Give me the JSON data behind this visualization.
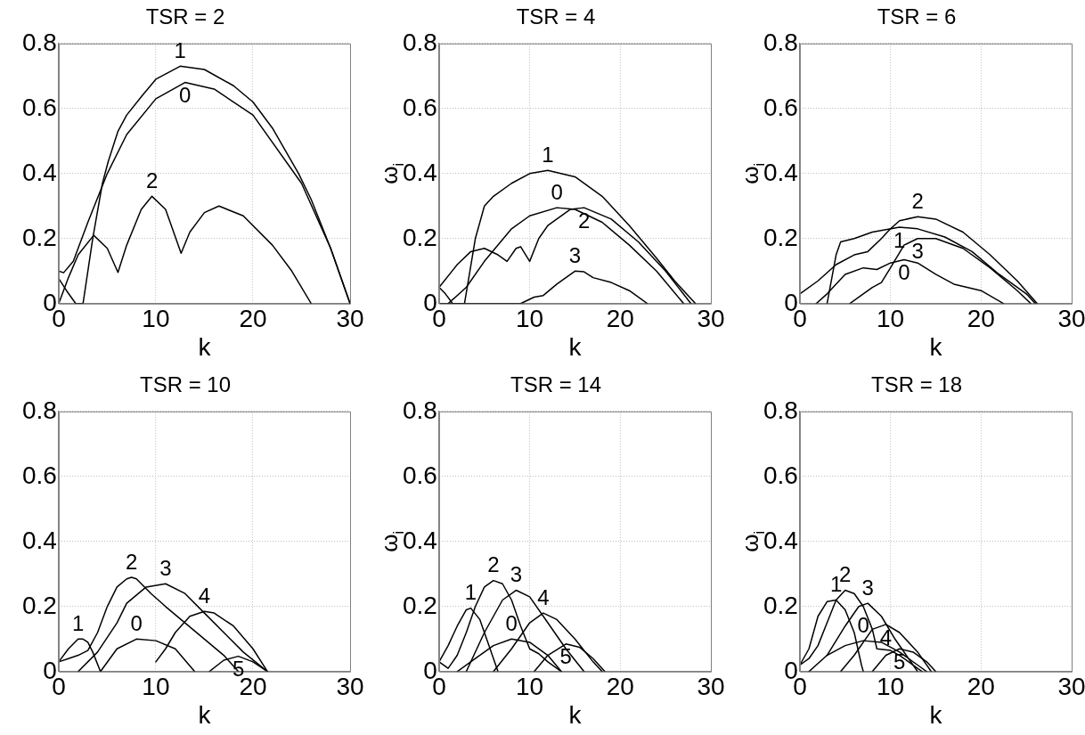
{
  "chart_data": [
    {
      "type": "line",
      "title": "TSR = 2",
      "xlabel": "k",
      "xlim": [
        0,
        30
      ],
      "xticks": [
        0,
        10,
        20,
        30
      ],
      "ylim": [
        0,
        0.8
      ],
      "yticks": [
        0,
        0.2,
        0.4,
        0.6,
        0.8
      ],
      "grid": true,
      "series": [
        {
          "name": "1",
          "color": "#000000",
          "x": [
            0,
            0.8,
            1.75,
            2.5,
            3.5,
            4.5,
            5.1,
            6.1,
            7,
            8.6,
            10,
            12.5,
            15,
            18,
            20,
            22,
            24.7,
            26,
            28,
            30
          ],
          "values": [
            0.077,
            0.04,
            0,
            0,
            0.2,
            0.37,
            0.437,
            0.53,
            0.58,
            0.64,
            0.69,
            0.73,
            0.72,
            0.67,
            0.62,
            0.54,
            0.4,
            0.32,
            0.17,
            0
          ]
        },
        {
          "name": "0",
          "color": "#000000",
          "x": [
            0,
            0.5,
            1.5,
            3,
            5,
            7,
            10,
            13,
            16,
            20,
            25,
            28,
            30
          ],
          "values": [
            0.1,
            0.095,
            0.13,
            0.25,
            0.4,
            0.52,
            0.63,
            0.68,
            0.66,
            0.58,
            0.37,
            0.17,
            0
          ]
        },
        {
          "name": "2",
          "color": "#000000",
          "x": [
            0,
            1,
            2,
            3.6,
            5,
            6.1,
            7,
            8.5,
            9.6,
            11,
            12.6,
            13.5,
            15,
            16.5,
            19,
            22,
            24,
            26
          ],
          "values": [
            0,
            0.08,
            0.15,
            0.21,
            0.17,
            0.096,
            0.18,
            0.29,
            0.33,
            0.29,
            0.155,
            0.22,
            0.28,
            0.3,
            0.27,
            0.18,
            0.1,
            0
          ]
        }
      ],
      "legend": false
    },
    {
      "type": "line",
      "title": "TSR = 4",
      "xlabel": "k",
      "ylabel": "ω$_{i}$",
      "xlim": [
        0,
        30
      ],
      "xticks": [
        0,
        10,
        20,
        30
      ],
      "ylim": [
        0,
        0.8
      ],
      "yticks": [
        0,
        0.2,
        0.4,
        0.6,
        0.8
      ],
      "grid": true,
      "series": [
        {
          "name": "1",
          "color": "#000000",
          "x": [
            0,
            0.7,
            1.5,
            2.8,
            4,
            5,
            6,
            8,
            10,
            12,
            15,
            18,
            21,
            24,
            26,
            28.3
          ],
          "values": [
            0.05,
            0.03,
            0,
            0,
            0.2,
            0.3,
            0.33,
            0.37,
            0.4,
            0.41,
            0.39,
            0.33,
            0.24,
            0.14,
            0.07,
            0
          ]
        },
        {
          "name": "0",
          "color": "#000000",
          "x": [
            1,
            3,
            5,
            8,
            10,
            13,
            15,
            18,
            21,
            24,
            27
          ],
          "values": [
            0,
            0.05,
            0.13,
            0.23,
            0.27,
            0.295,
            0.29,
            0.25,
            0.18,
            0.1,
            0
          ]
        },
        {
          "name": "2",
          "color": "#000000",
          "x": [
            0,
            2,
            3.5,
            5,
            6.5,
            7.5,
            8.5,
            9,
            10,
            11,
            12,
            14.5,
            16,
            19,
            22,
            25,
            27.8
          ],
          "values": [
            0.05,
            0.12,
            0.16,
            0.17,
            0.15,
            0.13,
            0.17,
            0.175,
            0.13,
            0.2,
            0.24,
            0.29,
            0.295,
            0.26,
            0.19,
            0.1,
            0
          ]
        },
        {
          "name": "3",
          "color": "#000000",
          "x": [
            0,
            9,
            10.5,
            11.5,
            13,
            15,
            16,
            17,
            19,
            21,
            23
          ],
          "values": [
            0,
            0,
            0.02,
            0.025,
            0.06,
            0.1,
            0.098,
            0.08,
            0.065,
            0.04,
            0
          ]
        }
      ],
      "legend": false
    },
    {
      "type": "line",
      "title": "TSR = 6",
      "xlabel": "k",
      "ylabel": "ω$_{i}$",
      "xlim": [
        0,
        30
      ],
      "xticks": [
        0,
        10,
        20,
        30
      ],
      "ylim": [
        0,
        0.8
      ],
      "yticks": [
        0,
        0.2,
        0.4,
        0.6,
        0.8
      ],
      "grid": true,
      "series": [
        {
          "name": "2",
          "color": "#000000",
          "x": [
            0,
            2,
            4,
            6,
            7.5,
            9,
            10,
            11,
            13,
            15,
            18,
            21,
            24,
            26.2
          ],
          "values": [
            0.03,
            0.07,
            0.12,
            0.15,
            0.16,
            0.2,
            0.23,
            0.255,
            0.267,
            0.26,
            0.22,
            0.15,
            0.07,
            0
          ]
        },
        {
          "name": "1",
          "color": "#000000",
          "x": [
            3,
            4,
            4.5,
            6,
            8,
            11,
            13,
            16,
            19,
            22,
            25,
            26
          ],
          "values": [
            0,
            0.15,
            0.19,
            0.2,
            0.22,
            0.235,
            0.23,
            0.205,
            0.16,
            0.09,
            0.03,
            0
          ]
        },
        {
          "name": "3",
          "color": "#000000",
          "x": [
            5.5,
            7,
            8,
            9,
            10,
            11.5,
            13,
            15,
            18,
            21,
            24,
            25.5
          ],
          "values": [
            0,
            0.03,
            0.05,
            0.065,
            0.11,
            0.18,
            0.2,
            0.2,
            0.17,
            0.11,
            0.04,
            0
          ]
        },
        {
          "name": "0",
          "color": "#000000",
          "x": [
            1.8,
            3,
            5,
            7,
            8.5,
            10,
            11.5,
            13,
            15,
            17,
            20,
            22.5
          ],
          "values": [
            0,
            0.03,
            0.09,
            0.11,
            0.105,
            0.125,
            0.135,
            0.125,
            0.09,
            0.06,
            0.04,
            0
          ]
        }
      ],
      "legend": false
    },
    {
      "type": "line",
      "title": "TSR = 10",
      "xlabel": "k",
      "xlim": [
        0,
        30
      ],
      "xticks": [
        0,
        10,
        20,
        30
      ],
      "ylim": [
        0,
        0.8
      ],
      "yticks": [
        0,
        0.2,
        0.4,
        0.6,
        0.8
      ],
      "grid": true,
      "series": [
        {
          "name": "2",
          "color": "#000000",
          "x": [
            0,
            1,
            2,
            3,
            4,
            5,
            6,
            7,
            7.5,
            8,
            9.5,
            11,
            13,
            15,
            17,
            18.5
          ],
          "values": [
            0.03,
            0.04,
            0.05,
            0.065,
            0.12,
            0.2,
            0.26,
            0.285,
            0.29,
            0.285,
            0.24,
            0.2,
            0.15,
            0.1,
            0.05,
            0
          ]
        },
        {
          "name": "1",
          "color": "#000000",
          "x": [
            0,
            1,
            2,
            2.5,
            3,
            3.5,
            4.3
          ],
          "values": [
            0.03,
            0.07,
            0.1,
            0.1,
            0.09,
            0.06,
            0
          ]
        },
        {
          "name": "3",
          "color": "#000000",
          "x": [
            2,
            4,
            6,
            7,
            9,
            11,
            13,
            15,
            17,
            19,
            21.5
          ],
          "values": [
            0,
            0.06,
            0.15,
            0.21,
            0.26,
            0.27,
            0.24,
            0.18,
            0.12,
            0.06,
            0
          ]
        },
        {
          "name": "4",
          "color": "#000000",
          "x": [
            10,
            11,
            12,
            13.5,
            15,
            16,
            18,
            20,
            21.5
          ],
          "values": [
            0.03,
            0.07,
            0.12,
            0.17,
            0.185,
            0.18,
            0.14,
            0.07,
            0
          ]
        },
        {
          "name": "0",
          "color": "#000000",
          "x": [
            4.3,
            6,
            8,
            10,
            12,
            14
          ],
          "values": [
            0,
            0.07,
            0.1,
            0.095,
            0.07,
            0
          ]
        },
        {
          "name": "5",
          "color": "#000000",
          "x": [
            15.5,
            17,
            18.5,
            20,
            21.5
          ],
          "values": [
            0,
            0.035,
            0.047,
            0.03,
            0
          ]
        }
      ],
      "legend": false
    },
    {
      "type": "line",
      "title": "TSR = 14",
      "xlabel": "k",
      "ylabel": "ω$_{i}$",
      "xlim": [
        0,
        30
      ],
      "xticks": [
        0,
        10,
        20,
        30
      ],
      "ylim": [
        0,
        0.8
      ],
      "yticks": [
        0,
        0.2,
        0.4,
        0.6,
        0.8
      ],
      "grid": true,
      "series": [
        {
          "name": "2",
          "color": "#000000",
          "x": [
            0,
            1,
            2,
            3,
            4,
            5,
            6,
            7,
            8,
            9,
            10,
            11,
            12,
            13.5
          ],
          "values": [
            0.03,
            0.01,
            0.05,
            0.12,
            0.2,
            0.26,
            0.28,
            0.27,
            0.22,
            0.14,
            0.07,
            0.055,
            0.03,
            0
          ]
        },
        {
          "name": "1",
          "color": "#000000",
          "x": [
            0,
            1,
            2,
            3,
            3.5,
            4.5,
            5.5,
            6.5
          ],
          "values": [
            0.03,
            0.08,
            0.14,
            0.19,
            0.195,
            0.16,
            0.08,
            0
          ]
        },
        {
          "name": "3",
          "color": "#000000",
          "x": [
            3,
            5,
            7,
            8.5,
            10,
            12,
            14,
            16
          ],
          "values": [
            0,
            0.12,
            0.22,
            0.25,
            0.23,
            0.15,
            0.07,
            0
          ]
        },
        {
          "name": "4",
          "color": "#000000",
          "x": [
            6,
            8,
            10,
            11.5,
            13,
            15,
            17,
            18
          ],
          "values": [
            0,
            0.07,
            0.15,
            0.18,
            0.16,
            0.1,
            0.03,
            0
          ]
        },
        {
          "name": "0",
          "color": "#000000",
          "x": [
            2,
            4,
            6,
            8,
            10,
            12,
            13.5
          ],
          "values": [
            0,
            0.04,
            0.08,
            0.1,
            0.09,
            0.05,
            0
          ]
        },
        {
          "name": "5",
          "color": "#000000",
          "x": [
            10.5,
            12,
            14,
            15.5,
            17,
            18.3
          ],
          "values": [
            0,
            0.05,
            0.085,
            0.075,
            0.04,
            0
          ]
        }
      ],
      "legend": false
    },
    {
      "type": "line",
      "title": "TSR = 18",
      "xlabel": "k",
      "ylabel": "ω$_{i}$",
      "xlim": [
        0,
        30
      ],
      "xticks": [
        0,
        10,
        20,
        30
      ],
      "ylim": [
        0,
        0.8
      ],
      "yticks": [
        0,
        0.2,
        0.4,
        0.6,
        0.8
      ],
      "grid": true,
      "series": [
        {
          "name": "2",
          "color": "#000000",
          "x": [
            0,
            1,
            2,
            3,
            4,
            5,
            6,
            7,
            8,
            8.5,
            10,
            11,
            12,
            13.5
          ],
          "values": [
            0.02,
            0.04,
            0.08,
            0.15,
            0.22,
            0.25,
            0.24,
            0.2,
            0.13,
            0.07,
            0.065,
            0.05,
            0.03,
            0
          ]
        },
        {
          "name": "1",
          "color": "#000000",
          "x": [
            0,
            1,
            2,
            3,
            4,
            5,
            6,
            6.8,
            7
          ],
          "values": [
            0.02,
            0.07,
            0.17,
            0.215,
            0.22,
            0.19,
            0.12,
            0.02,
            0
          ]
        },
        {
          "name": "3",
          "color": "#000000",
          "x": [
            3,
            5,
            6.5,
            7.5,
            9,
            10.5,
            12,
            13
          ],
          "values": [
            0.05,
            0.14,
            0.2,
            0.21,
            0.17,
            0.1,
            0.04,
            0
          ]
        },
        {
          "name": "4",
          "color": "#000000",
          "x": [
            4.5,
            6,
            8,
            9.5,
            11,
            13,
            14.5
          ],
          "values": [
            0,
            0.05,
            0.13,
            0.145,
            0.12,
            0.06,
            0
          ]
        },
        {
          "name": "0",
          "color": "#000000",
          "x": [
            1,
            3,
            5,
            7,
            9,
            11,
            13,
            14
          ],
          "values": [
            0,
            0.05,
            0.08,
            0.095,
            0.09,
            0.06,
            0.02,
            0
          ]
        },
        {
          "name": "5",
          "color": "#000000",
          "x": [
            8,
            9.5,
            11,
            12.5,
            14,
            15
          ],
          "values": [
            0,
            0.05,
            0.07,
            0.06,
            0.03,
            0
          ]
        }
      ],
      "legend": false
    }
  ]
}
